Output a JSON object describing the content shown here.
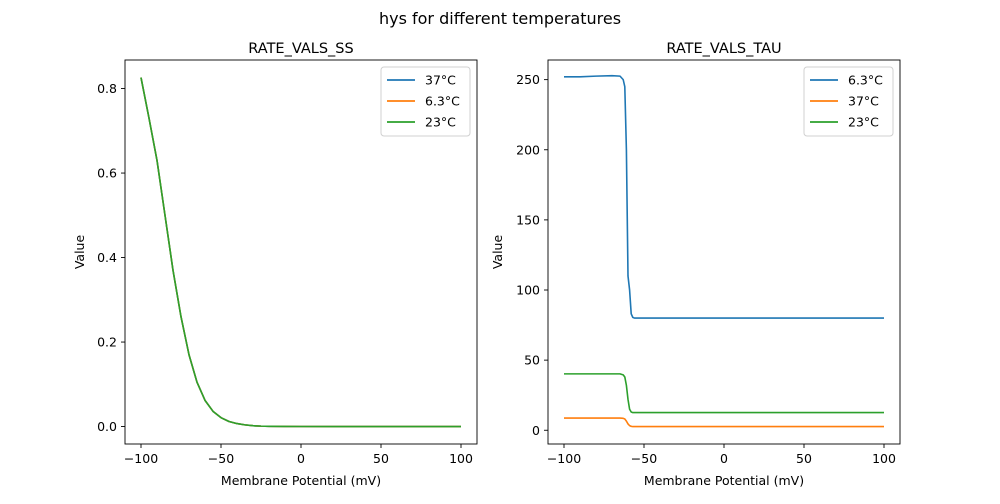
{
  "figure": {
    "suptitle": "hys for different temperatures"
  },
  "chart_data": [
    {
      "type": "line",
      "title": "RATE_VALS_SS",
      "xlabel": "Membrane Potential (mV)",
      "ylabel": "Value",
      "xlim": [
        -110,
        110
      ],
      "ylim": [
        -0.0413,
        0.8676
      ],
      "xticks": [
        -100,
        -50,
        0,
        50,
        100
      ],
      "xtick_labels": [
        "−100",
        "−50",
        "0",
        "50",
        "100"
      ],
      "yticks": [
        0.0,
        0.2,
        0.4,
        0.6,
        0.8
      ],
      "ytick_labels": [
        "0.0",
        "0.2",
        "0.4",
        "0.6",
        "0.8"
      ],
      "legend_position": "top-right",
      "series": [
        {
          "name": "37°C",
          "color": "#1f77b4",
          "x": [
            -100,
            -95,
            -90,
            -85,
            -80,
            -75,
            -70,
            -65,
            -60,
            -55,
            -50,
            -45,
            -40,
            -35,
            -30,
            -25,
            -20,
            -10,
            0,
            20,
            50,
            100
          ],
          "y": [
            0.826,
            0.73,
            0.63,
            0.5,
            0.37,
            0.26,
            0.17,
            0.105,
            0.062,
            0.036,
            0.021,
            0.012,
            0.007,
            0.004,
            0.002,
            0.001,
            0.0006,
            0.0002,
            0.0001,
            0.0,
            0.0,
            0.0
          ]
        },
        {
          "name": "6.3°C",
          "color": "#ff7f0e",
          "x": [
            -100,
            -95,
            -90,
            -85,
            -80,
            -75,
            -70,
            -65,
            -60,
            -55,
            -50,
            -45,
            -40,
            -35,
            -30,
            -25,
            -20,
            -10,
            0,
            20,
            50,
            100
          ],
          "y": [
            0.826,
            0.73,
            0.63,
            0.5,
            0.37,
            0.26,
            0.17,
            0.105,
            0.062,
            0.036,
            0.021,
            0.012,
            0.007,
            0.004,
            0.002,
            0.001,
            0.0006,
            0.0002,
            0.0001,
            0.0,
            0.0,
            0.0
          ]
        },
        {
          "name": "23°C",
          "color": "#2ca02c",
          "x": [
            -100,
            -95,
            -90,
            -85,
            -80,
            -75,
            -70,
            -65,
            -60,
            -55,
            -50,
            -45,
            -40,
            -35,
            -30,
            -25,
            -20,
            -10,
            0,
            20,
            50,
            100
          ],
          "y": [
            0.826,
            0.73,
            0.63,
            0.5,
            0.37,
            0.26,
            0.17,
            0.105,
            0.062,
            0.036,
            0.021,
            0.012,
            0.007,
            0.004,
            0.002,
            0.001,
            0.0006,
            0.0002,
            0.0001,
            0.0,
            0.0,
            0.0
          ]
        }
      ]
    },
    {
      "type": "line",
      "title": "RATE_VALS_TAU",
      "xlabel": "Membrane Potential (mV)",
      "ylabel": "Value",
      "xlim": [
        -110,
        110
      ],
      "ylim": [
        -9.8,
        264.0
      ],
      "xticks": [
        -100,
        -50,
        0,
        50,
        100
      ],
      "xtick_labels": [
        "−100",
        "−50",
        "0",
        "50",
        "100"
      ],
      "yticks": [
        0,
        50,
        100,
        150,
        200,
        250
      ],
      "ytick_labels": [
        "0",
        "50",
        "100",
        "150",
        "200",
        "250"
      ],
      "legend_position": "top-right",
      "series": [
        {
          "name": "6.3°C",
          "color": "#1f77b4",
          "x": [
            -100,
            -90,
            -80,
            -70,
            -65,
            -63,
            -62,
            -61,
            -60,
            -59,
            -58,
            -57,
            -56,
            -55,
            -50,
            0,
            50,
            100
          ],
          "y": [
            252,
            252,
            252.5,
            252.8,
            252.5,
            250,
            245,
            200,
            110,
            100,
            83,
            80.5,
            80,
            80,
            80,
            80,
            80,
            80
          ]
        },
        {
          "name": "37°C",
          "color": "#ff7f0e",
          "x": [
            -100,
            -90,
            -80,
            -70,
            -65,
            -63,
            -62,
            -61,
            -60,
            -59,
            -58,
            -57,
            -56,
            -55,
            -50,
            0,
            50,
            100
          ],
          "y": [
            8.7,
            8.7,
            8.7,
            8.7,
            8.7,
            8.5,
            8.0,
            6.5,
            4.5,
            3.3,
            2.8,
            2.6,
            2.6,
            2.6,
            2.6,
            2.6,
            2.6,
            2.6
          ]
        },
        {
          "name": "23°C",
          "color": "#2ca02c",
          "x": [
            -100,
            -90,
            -80,
            -70,
            -65,
            -63,
            -62,
            -61,
            -60,
            -59,
            -58,
            -57,
            -56,
            -55,
            -50,
            0,
            50,
            100
          ],
          "y": [
            40.2,
            40.2,
            40.2,
            40.2,
            40.2,
            39.5,
            38,
            32,
            22,
            15,
            13,
            12.6,
            12.6,
            12.6,
            12.6,
            12.6,
            12.6,
            12.6
          ]
        }
      ]
    }
  ]
}
